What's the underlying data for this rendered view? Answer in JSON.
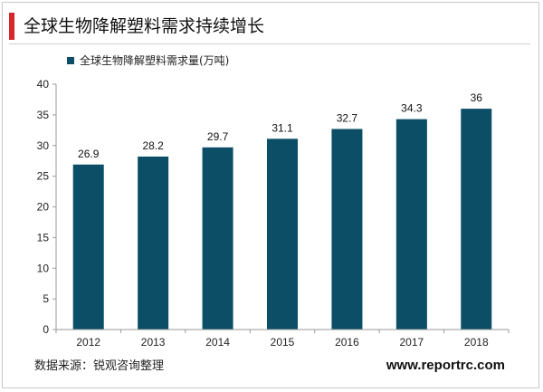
{
  "header": {
    "title": "全球生物降解塑料需求持续增长"
  },
  "chart_data": {
    "type": "bar",
    "categories": [
      "2012",
      "2013",
      "2014",
      "2015",
      "2016",
      "2017",
      "2018"
    ],
    "series": [
      {
        "name": "全球生物降解塑料需求量(万吨)",
        "values": [
          26.9,
          28.2,
          29.7,
          31.1,
          32.7,
          34.3,
          36
        ]
      }
    ],
    "data_labels": [
      "26.9",
      "28.2",
      "29.7",
      "31.1",
      "32.7",
      "34.3",
      "36"
    ],
    "y_ticks": [
      0,
      5,
      10,
      15,
      20,
      25,
      30,
      35,
      40
    ],
    "ylim": [
      0,
      40
    ],
    "bar_color": "#0b4e66",
    "grid": false,
    "legend_position": "top-left"
  },
  "footer": {
    "source": "数据来源：锐观咨询整理",
    "website": "www.reportrc.com"
  }
}
